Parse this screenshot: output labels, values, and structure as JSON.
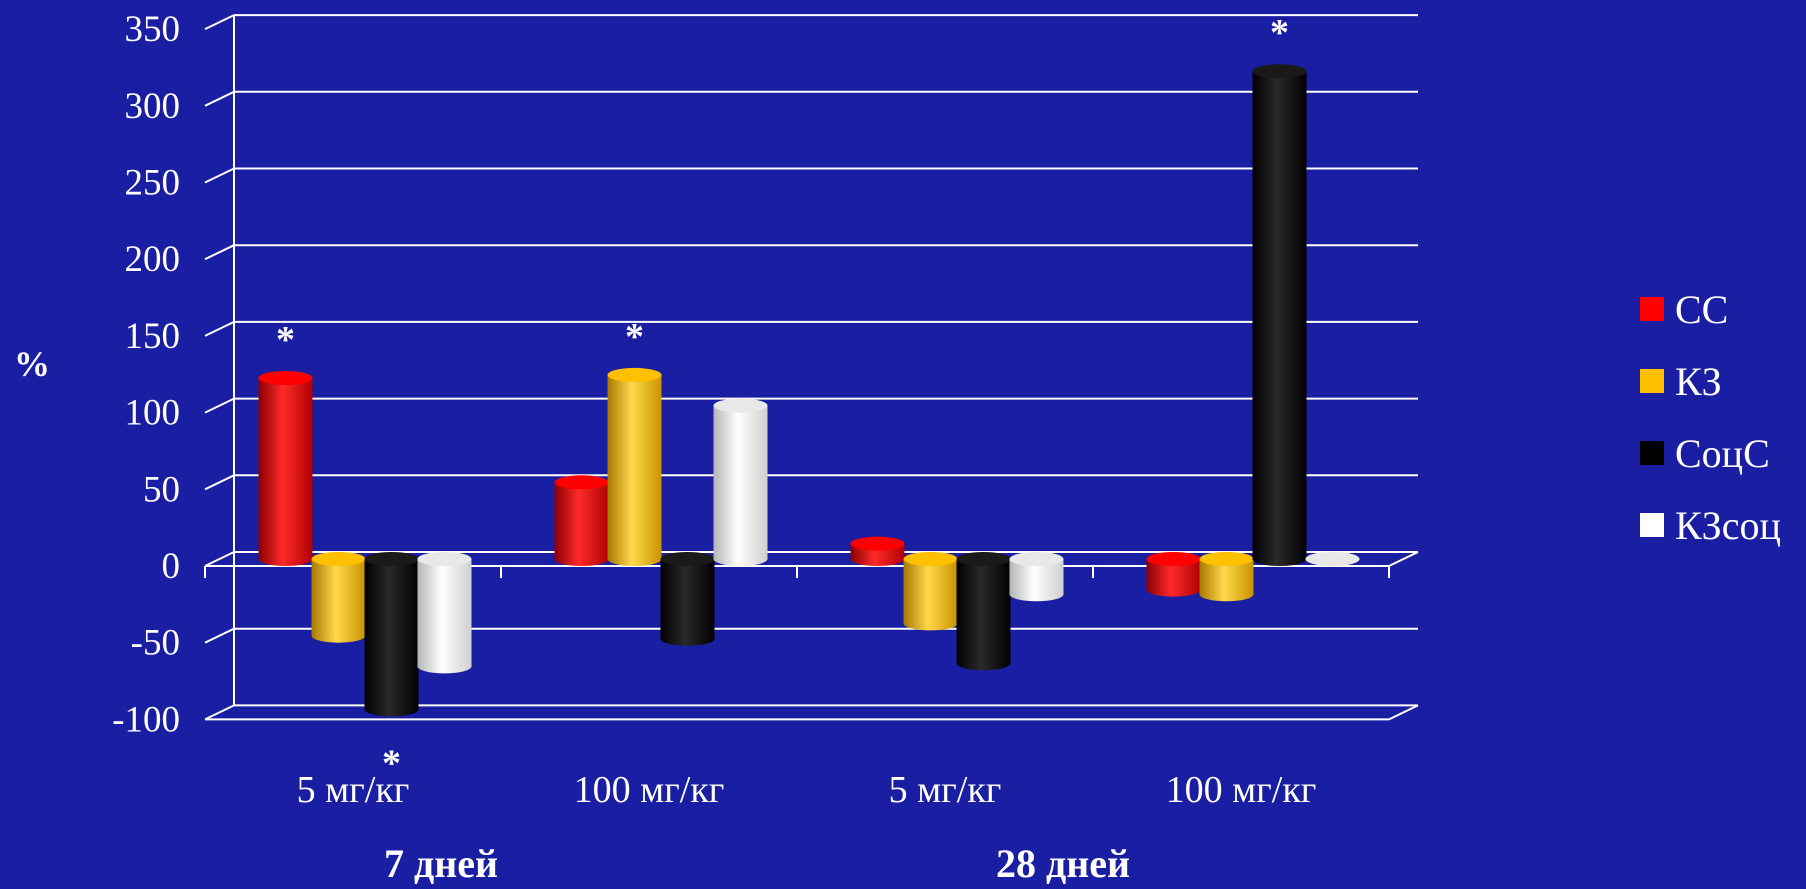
{
  "chart_data": {
    "type": "bar",
    "ylabel": "%",
    "ylim": [
      -100,
      350
    ],
    "yticks": [
      -100,
      -50,
      0,
      50,
      100,
      150,
      200,
      250,
      300,
      350
    ],
    "categories": [
      "5 мг/кг",
      "100 мг/кг",
      "5 мг/кг",
      "100 мг/кг"
    ],
    "groups": [
      {
        "label": "7 дней",
        "categories": [
          0,
          1
        ]
      },
      {
        "label": "28 дней",
        "categories": [
          2,
          3
        ]
      }
    ],
    "series": [
      {
        "name": "СС",
        "color": "#ff0000",
        "values": [
          118,
          50,
          10,
          -20
        ]
      },
      {
        "name": "КЗ",
        "color": "#ffc000",
        "values": [
          -50,
          120,
          -42,
          -23
        ]
      },
      {
        "name": "СоцС",
        "color": "#000000",
        "values": [
          -98,
          -52,
          -68,
          318
        ]
      },
      {
        "name": "КЗсоц",
        "color": "#ffffff",
        "values": [
          -70,
          100,
          -23,
          0
        ]
      }
    ],
    "significance": [
      {
        "category": 0,
        "series": 0,
        "mark": "*"
      },
      {
        "category": 0,
        "series": 2,
        "mark": "*"
      },
      {
        "category": 1,
        "series": 1,
        "mark": "*"
      },
      {
        "category": 3,
        "series": 2,
        "mark": "*"
      }
    ],
    "grid": true,
    "legend": "right",
    "colors": {
      "background": "#1a1ea3",
      "text": "#ffffff",
      "grid": "#ffffff"
    }
  }
}
